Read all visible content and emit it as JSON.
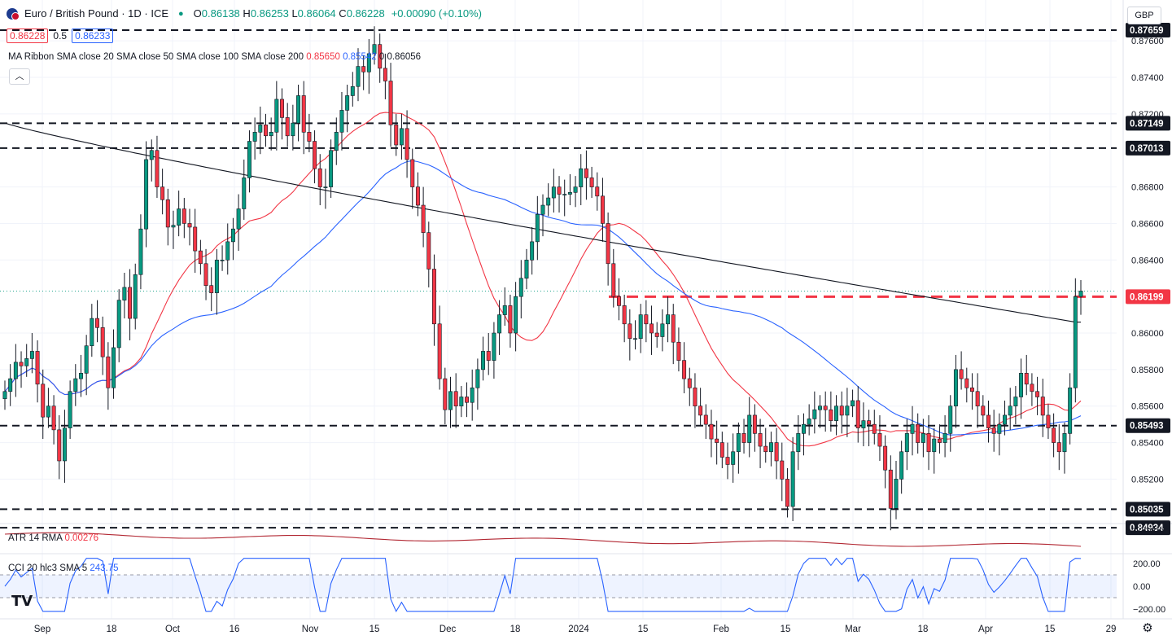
{
  "header": {
    "symbol": "Euro / British Pound · 1D · ICE",
    "open_label": "O",
    "open": "0.86138",
    "high_label": "H",
    "high": "0.86253",
    "low_label": "L",
    "low": "0.86064",
    "close_label": "C",
    "close": "0.86228",
    "change": "+0.00090 (+0.10%)",
    "sell_price": "0.86228",
    "spread": "0.5",
    "buy_price": "0.86233",
    "currency": "GBP"
  },
  "indicators": {
    "ribbon_label": "MA Ribbon SMA close 20 SMA close 50 SMA close 100 SMA close 200",
    "ma20_value": "0.85650",
    "ma50_value": "0.85542",
    "ma200_value": "0.86056",
    "ma200_prefix": "0",
    "atr_label": "ATR 14 RMA",
    "atr_value": "0.00276",
    "cci_label": "CCI 20 hlc3 SMA 5",
    "cci_value": "243.75"
  },
  "icons": {
    "collapse": "chevron-up-icon",
    "settings": "gear-icon",
    "logo": "tradingview-logo"
  },
  "colors": {
    "up": "#089981",
    "down": "#f23645",
    "ma20": "#f23645",
    "ma50": "#2962ff",
    "ma200": "#131722",
    "atr": "#b22833",
    "cci": "#2962ff"
  },
  "chart_data": {
    "type": "candlestick",
    "title": "Euro / British Pound · 1D · ICE",
    "y_ticks": [
      "0.87600",
      "0.87400",
      "0.87200",
      "0.86800",
      "0.86600",
      "0.86400",
      "0.86000",
      "0.85800",
      "0.85600",
      "0.85400",
      "0.85200"
    ],
    "x_ticks": [
      "Sep",
      "18",
      "Oct",
      "16",
      "Nov",
      "15",
      "Dec",
      "18",
      "2024",
      "15",
      "Feb",
      "15",
      "Mar",
      "18",
      "Apr",
      "15",
      "29"
    ],
    "ylim": [
      0.8497,
      0.8769
    ],
    "horizontal_levels": [
      {
        "label": "0.87659",
        "value": 0.87659,
        "style": "dashed"
      },
      {
        "label": "0.87149",
        "value": 0.87149,
        "style": "dashed"
      },
      {
        "label": "0.87013",
        "value": 0.87013,
        "style": "dashed"
      },
      {
        "label": "0.86199",
        "value": 0.86199,
        "style": "dashed-red"
      },
      {
        "label": "0.85493",
        "value": 0.85493,
        "style": "dashed"
      },
      {
        "label": "0.85035",
        "value": 0.85035,
        "style": "dashed"
      },
      {
        "label": "0.84934",
        "value": 0.84934,
        "style": "dashed"
      }
    ],
    "current_price_label": "0.86199",
    "closes": [
      0.8568,
      0.8575,
      0.8584,
      0.8582,
      0.8586,
      0.859,
      0.8572,
      0.8554,
      0.856,
      0.8547,
      0.853,
      0.8548,
      0.8568,
      0.8575,
      0.8578,
      0.8593,
      0.8608,
      0.8603,
      0.8587,
      0.857,
      0.8592,
      0.8618,
      0.8625,
      0.8608,
      0.8632,
      0.8657,
      0.8695,
      0.87,
      0.868,
      0.8673,
      0.8658,
      0.8659,
      0.8668,
      0.866,
      0.8658,
      0.8645,
      0.8638,
      0.8626,
      0.8622,
      0.864,
      0.864,
      0.865,
      0.8657,
      0.8668,
      0.8685,
      0.8705,
      0.871,
      0.8714,
      0.8708,
      0.871,
      0.8728,
      0.8718,
      0.8708,
      0.8715,
      0.873,
      0.871,
      0.8705,
      0.869,
      0.868,
      0.868,
      0.87,
      0.871,
      0.8722,
      0.873,
      0.8735,
      0.8746,
      0.8743,
      0.8753,
      0.8758,
      0.8745,
      0.8738,
      0.8714,
      0.8703,
      0.8712,
      0.8695,
      0.868,
      0.867,
      0.8655,
      0.8635,
      0.8605,
      0.8575,
      0.8558,
      0.8568,
      0.856,
      0.8565,
      0.8562,
      0.857,
      0.858,
      0.859,
      0.8585,
      0.86,
      0.861,
      0.8615,
      0.86,
      0.862,
      0.863,
      0.864,
      0.865,
      0.8665,
      0.867,
      0.8674,
      0.868,
      0.8676,
      0.8676,
      0.8677,
      0.868,
      0.869,
      0.8685,
      0.868,
      0.8675,
      0.866,
      0.8638,
      0.862,
      0.8615,
      0.8605,
      0.8597,
      0.8597,
      0.861,
      0.8605,
      0.86,
      0.8598,
      0.8605,
      0.861,
      0.8595,
      0.8585,
      0.8575,
      0.857,
      0.856,
      0.8555,
      0.855,
      0.8542,
      0.854,
      0.8532,
      0.8528,
      0.8535,
      0.8545,
      0.854,
      0.8555,
      0.8545,
      0.8538,
      0.8535,
      0.854,
      0.853,
      0.852,
      0.8505,
      0.8535,
      0.8545,
      0.855,
      0.8553,
      0.8558,
      0.856,
      0.8558,
      0.8552,
      0.856,
      0.8555,
      0.856,
      0.8563,
      0.8548,
      0.8552,
      0.855,
      0.8545,
      0.8538,
      0.8525,
      0.8504,
      0.852,
      0.8535,
      0.8545,
      0.855,
      0.854,
      0.8545,
      0.8535,
      0.8542,
      0.854,
      0.8545,
      0.856,
      0.858,
      0.8575,
      0.857,
      0.8568,
      0.856,
      0.8555,
      0.8548,
      0.8545,
      0.855,
      0.8555,
      0.856,
      0.8565,
      0.8578,
      0.8572,
      0.8568,
      0.8565,
      0.8555,
      0.8548,
      0.854,
      0.8535,
      0.8545,
      0.857,
      0.862,
      0.8623
    ]
  }
}
